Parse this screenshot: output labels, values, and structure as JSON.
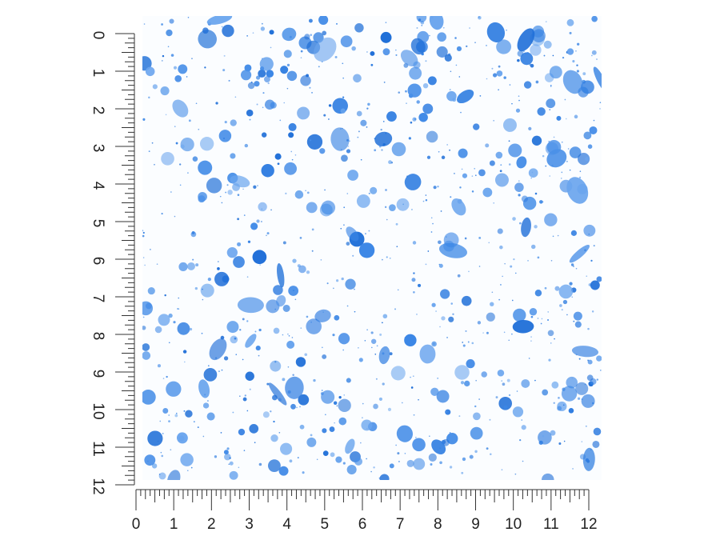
{
  "left_ruler": {
    "labels": [
      0,
      1,
      2,
      3,
      4,
      5,
      6,
      7,
      8,
      9,
      10,
      11,
      12
    ]
  },
  "bottom_ruler": {
    "labels": [
      0,
      1,
      2,
      3,
      4,
      5,
      6,
      7,
      8,
      9,
      10,
      11,
      12
    ]
  }
}
